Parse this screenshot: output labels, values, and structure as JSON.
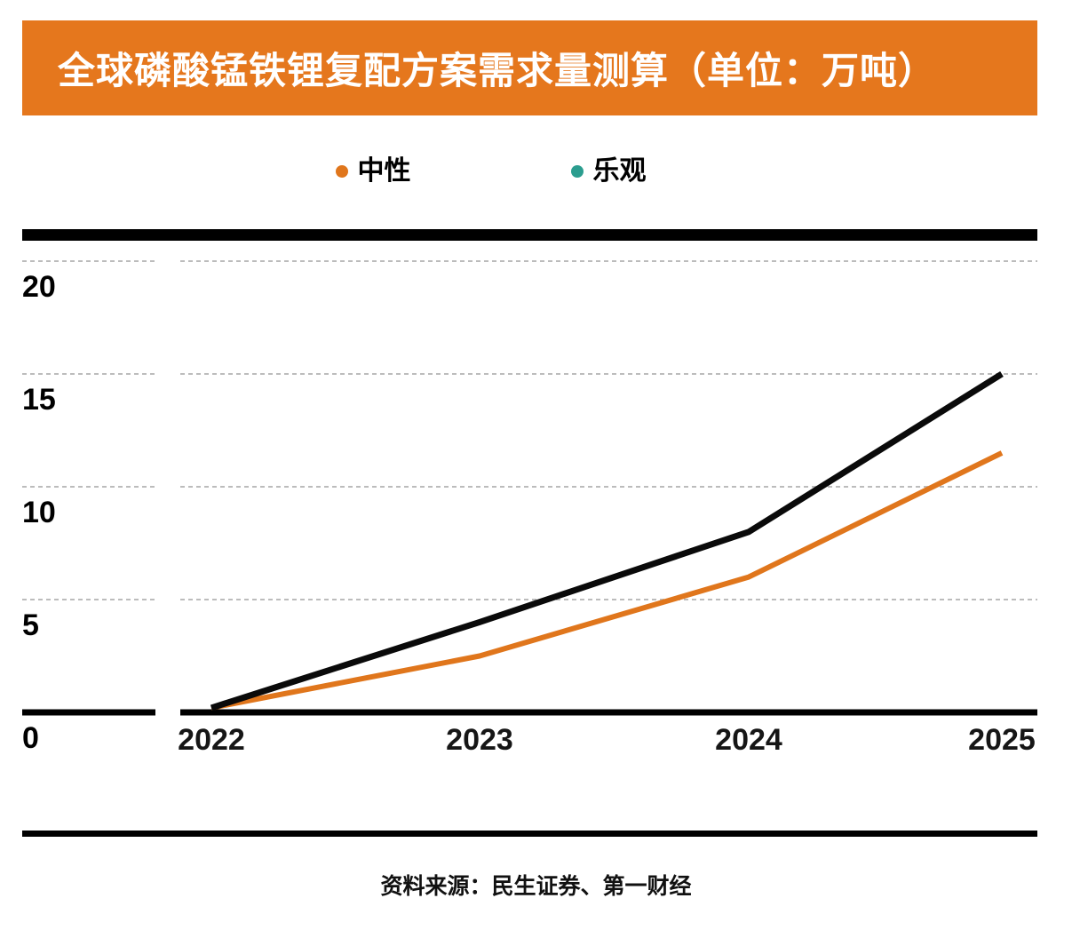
{
  "header": {
    "title": "全球磷酸锰铁锂复配方案需求量测算（单位：万吨）",
    "bg_color": "#e5771d"
  },
  "legend": {
    "items": [
      {
        "label": "中性",
        "color": "#e0761c"
      },
      {
        "label": "乐观",
        "color": "#2b9d8f"
      }
    ]
  },
  "chart_data": {
    "type": "line",
    "title": "全球磷酸锰铁锂复配方案需求量测算",
    "unit": "万吨",
    "categories": [
      "2022",
      "2023",
      "2024",
      "2025"
    ],
    "series": [
      {
        "name": "中性",
        "color": "#e0761c",
        "values": [
          0.2,
          2.5,
          6,
          11.5
        ]
      },
      {
        "name": "乐观",
        "color": "#0a0a0a",
        "values": [
          0.2,
          4,
          8,
          15
        ]
      }
    ],
    "ylim": [
      0,
      20
    ],
    "yticks": [
      0,
      5,
      10,
      15,
      20
    ],
    "grid": "dashed-horizontal",
    "gridline_color": "#bcbcbc",
    "legend_position": "top"
  },
  "footer": {
    "source": "资料来源：民生证券、第一财经"
  }
}
